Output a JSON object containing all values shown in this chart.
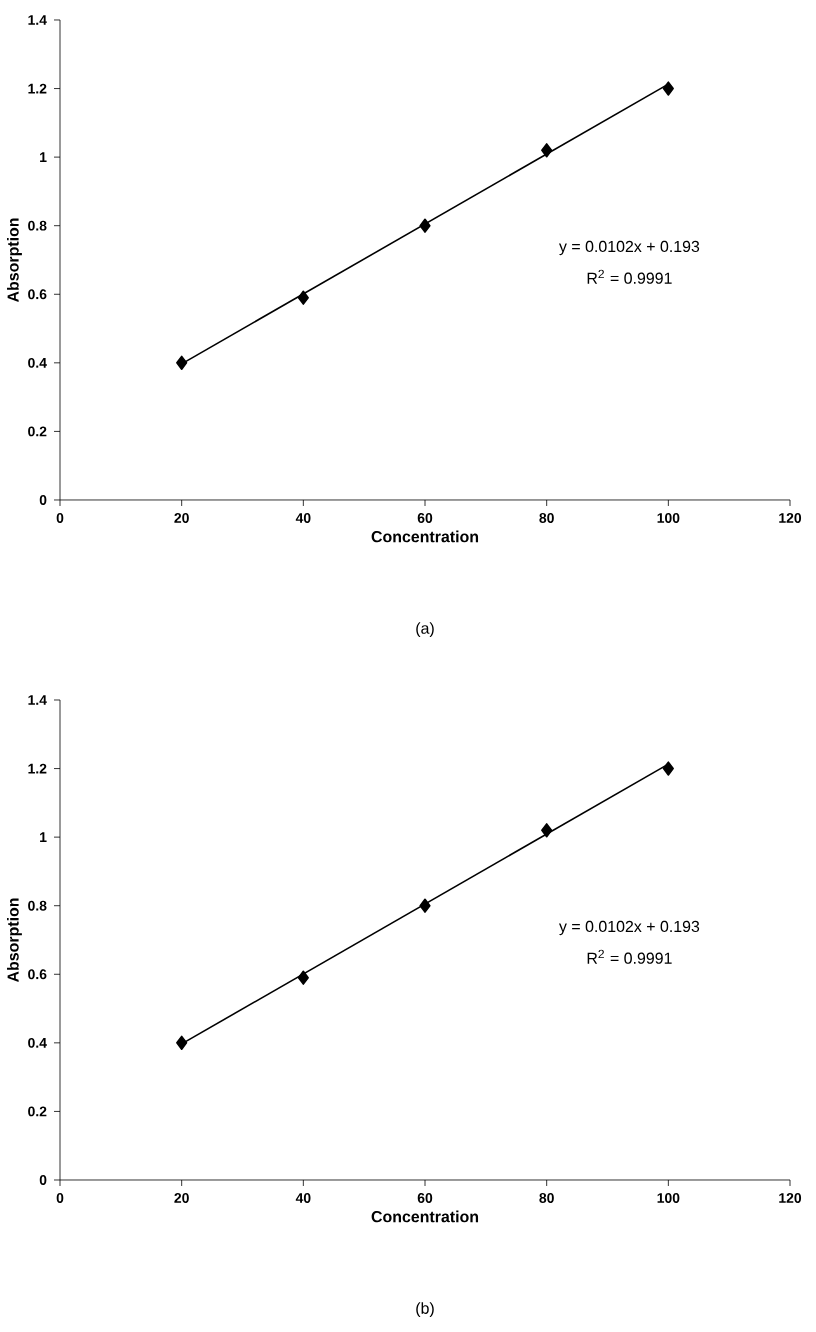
{
  "chart_data": [
    {
      "type": "scatter",
      "xlabel": "Concentration",
      "ylabel": "Absorption",
      "xlim": [
        0,
        120
      ],
      "ylim": [
        0,
        1.4
      ],
      "xticks": [
        0,
        20,
        40,
        60,
        80,
        100,
        120
      ],
      "yticks": [
        0,
        0.2,
        0.4,
        0.6,
        0.8,
        1,
        1.2,
        1.4
      ],
      "series": [
        {
          "color": "#000000",
          "marker": "diamond",
          "x": [
            20,
            40,
            60,
            80,
            100
          ],
          "values": [
            0.4,
            0.59,
            0.8,
            1.02,
            1.2
          ]
        },
        {
          "type": "line",
          "color": "#000000",
          "marker": "none",
          "line_style": "solid",
          "x": [
            20,
            100
          ],
          "values": [
            0.397,
            1.213
          ]
        }
      ],
      "annotations": [
        "y = 0.0102x + 0.193",
        "R$^{2}$ = 0.9991",
        "(a)"
      ]
    },
    {
      "type": "scatter",
      "xlabel": "Concentration",
      "ylabel": "Absorption",
      "xlim": [
        0,
        120
      ],
      "ylim": [
        0,
        1.4
      ],
      "xticks": [
        0,
        20,
        40,
        60,
        80,
        100,
        120
      ],
      "yticks": [
        0,
        0.2,
        0.4,
        0.6,
        0.8,
        1,
        1.2,
        1.4
      ],
      "series": [
        {
          "color": "#000000",
          "marker": "diamond",
          "x": [
            20,
            40,
            60,
            80,
            100
          ],
          "values": [
            0.4,
            0.59,
            0.8,
            1.02,
            1.2
          ]
        },
        {
          "type": "line",
          "color": "#000000",
          "marker": "none",
          "line_style": "solid",
          "x": [
            20,
            100
          ],
          "values": [
            0.397,
            1.213
          ]
        }
      ],
      "annotations": [
        "y = 0.0102x + 0.193",
        "R$^{2}$ = 0.9991",
        "(b)"
      ]
    }
  ]
}
